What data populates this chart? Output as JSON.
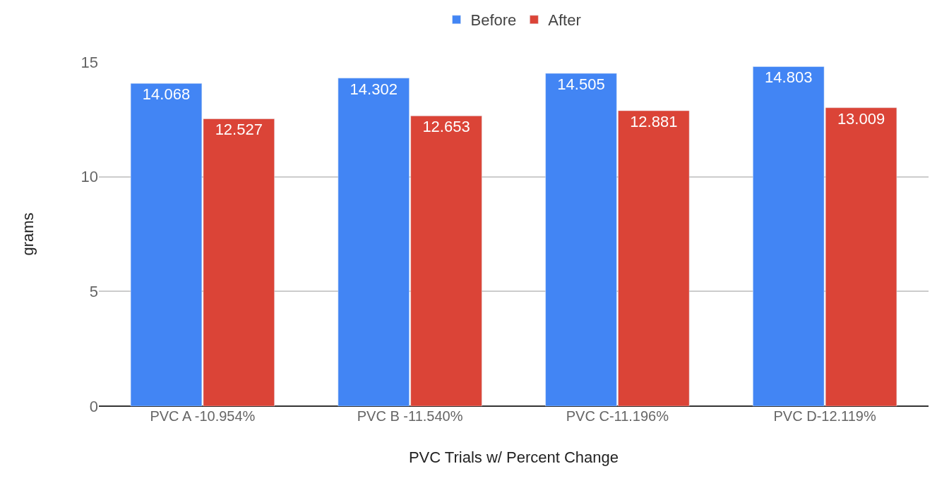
{
  "chart_data": {
    "type": "bar",
    "xlabel": "PVC Trials w/ Percent Change",
    "ylabel": "grams",
    "categories": [
      "PVC A -10.954%",
      "PVC B -11.540%",
      "PVC C-11.196%",
      "PVC D-12.119%"
    ],
    "series": [
      {
        "name": "Before",
        "color": "#4285f4",
        "values": [
          14.068,
          14.302,
          14.505,
          14.803
        ]
      },
      {
        "name": "After",
        "color": "#db4437",
        "values": [
          12.527,
          12.653,
          12.881,
          13.009
        ]
      }
    ],
    "ylim": [
      0,
      15
    ],
    "yticks": [
      0,
      5,
      10,
      15
    ],
    "grid": "y",
    "legend": "top",
    "data_labels": true
  }
}
